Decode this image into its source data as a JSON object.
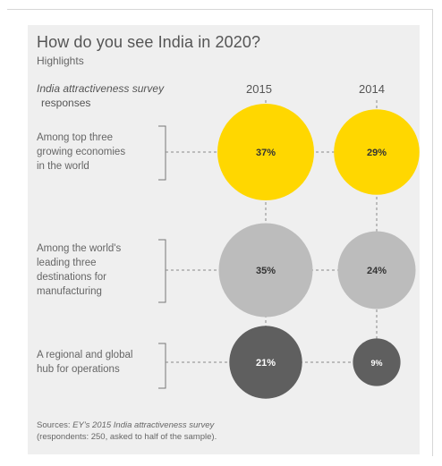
{
  "chart_data": {
    "type": "bubble",
    "title": "How do you see India in 2020?",
    "subtitle": "Highlights",
    "row_header": "India attractiveness survey responses",
    "categories": [
      "Among top three growing economies in the world",
      "Among the world's leading three destinations for manufacturing",
      "A regional and global hub for operations"
    ],
    "category_lines": [
      [
        "Among top three",
        "growing economies",
        "in the world"
      ],
      [
        "Among the world's",
        "leading three",
        "destinations for",
        "manufacturing"
      ],
      [
        "A regional and global",
        "hub for operations"
      ]
    ],
    "columns": [
      "2015",
      "2014"
    ],
    "series": [
      {
        "name": "2015",
        "values": [
          37,
          35,
          21
        ],
        "labels": [
          "37%",
          "35%",
          "21%"
        ]
      },
      {
        "name": "2014",
        "values": [
          29,
          24,
          9
        ],
        "labels": [
          "29%",
          "24%",
          "9%"
        ]
      }
    ],
    "row_colors": [
      "#ffd700",
      "#bcbcbc",
      "#5f5f5f"
    ],
    "label_colors": [
      "#333333",
      "#333333",
      "#ffffff"
    ],
    "unit": "%"
  },
  "header": {
    "title": "How do you see India in 2020?",
    "subtitle": "Highlights",
    "row_header_line1": "India attractiveness survey",
    "row_header_line2": "responses"
  },
  "source": {
    "prefix": "Sources: ",
    "italic": "EY's 2015 India attractiveness survey",
    "line2": "(respondents: 250, asked to half of the sample)."
  }
}
